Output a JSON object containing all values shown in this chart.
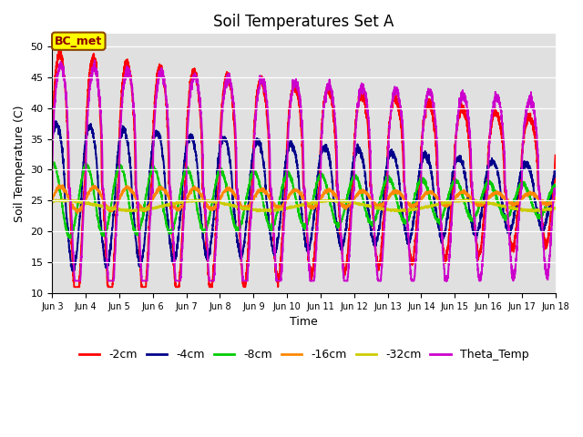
{
  "title": "Soil Temperatures Set A",
  "xlabel": "Time",
  "ylabel": "Soil Temperature (C)",
  "ylim": [
    10,
    52
  ],
  "xlim": [
    0,
    15
  ],
  "background_color": "#e0e0e0",
  "fig_background": "#ffffff",
  "annotation_text": "BC_met",
  "annotation_bg": "#ffff00",
  "annotation_edge": "#8b4500",
  "legend_entries": [
    "-2cm",
    "-4cm",
    "-8cm",
    "-16cm",
    "-32cm",
    "Theta_Temp"
  ],
  "line_colors": [
    "#ff0000",
    "#00008b",
    "#00cc00",
    "#ff8800",
    "#cccc00",
    "#cc00cc"
  ],
  "tick_labels": [
    "Jun 3",
    "Jun 4",
    "Jun 5",
    "Jun 6",
    "Jun 7",
    "Jun 8",
    "Jun 9",
    "Jun 10",
    "Jun 11",
    "Jun 12",
    "Jun 13",
    "Jun 14",
    "Jun 15",
    "Jun 16",
    "Jun 17",
    "Jun 18"
  ],
  "yticks": [
    10,
    15,
    20,
    25,
    30,
    35,
    40,
    45,
    50
  ],
  "grid_color": "#ffffff"
}
